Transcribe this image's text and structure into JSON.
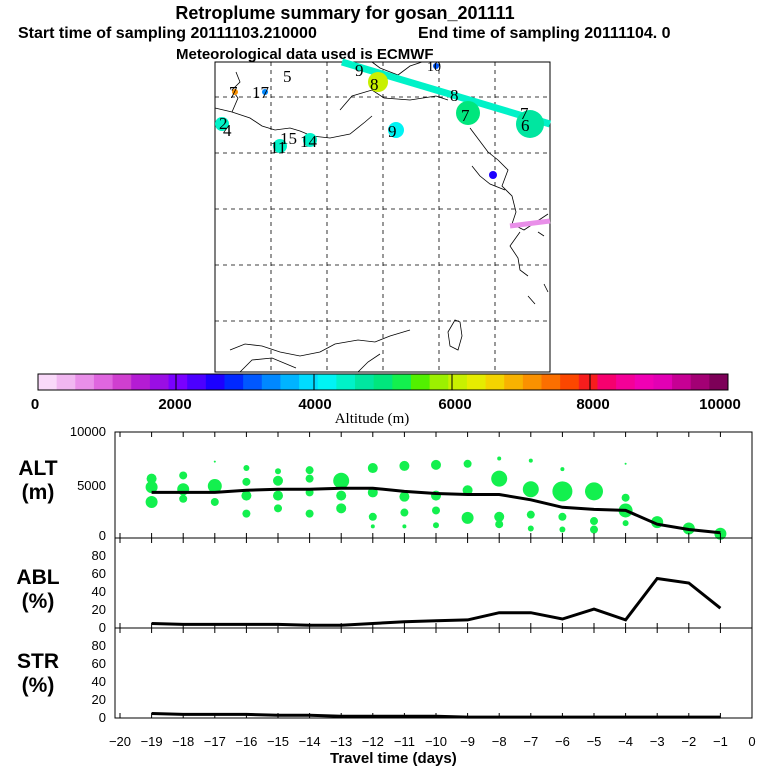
{
  "header": {
    "title": "Retroplume summary for gosan_201111",
    "start": "Start time of sampling 20111103.210000",
    "end": "End time of sampling 20111104.     0",
    "met": "Meteorological data used is ECMWF"
  },
  "map": {
    "labels": [
      "2",
      "4",
      "5",
      "6",
      "7",
      "7",
      "7",
      "8",
      "8",
      "9",
      "9",
      "10",
      "11",
      "14",
      "15",
      "17"
    ]
  },
  "colorbar": {
    "label": "Altitude (m)",
    "ticks": [
      "0",
      "2000",
      "4000",
      "6000",
      "8000",
      "10000"
    ],
    "colors": [
      "#f9d9f9",
      "#f1b7f1",
      "#e98fe9",
      "#df66df",
      "#cf3fcf",
      "#b41cd3",
      "#9a0ee4",
      "#7a00ff",
      "#4c00ff",
      "#1c00ff",
      "#0028ff",
      "#0058ff",
      "#0088ff",
      "#00b4ff",
      "#00dcff",
      "#00f4f4",
      "#00f2c8",
      "#00e6a0",
      "#00e67d",
      "#13f04e",
      "#52f000",
      "#9cf000",
      "#c8f000",
      "#e6ec00",
      "#f4d400",
      "#f8b200",
      "#fa9100",
      "#fb6f00",
      "#fc4700",
      "#f71d1d",
      "#f6006e",
      "#f40098",
      "#f000b4",
      "#e200b4",
      "#c60094",
      "#a30074",
      "#7d0058"
    ]
  },
  "panels": {
    "alt": {
      "label": "ALT\n(m)",
      "ticks": [
        "0",
        "5000",
        "10000"
      ]
    },
    "abl": {
      "label": "ABL\n(%)",
      "ticks": [
        "0",
        "20",
        "40",
        "60",
        "80"
      ]
    },
    "str": {
      "label": "STR\n(%)",
      "ticks": [
        "0",
        "20",
        "40",
        "60",
        "80"
      ]
    }
  },
  "xaxis": {
    "label": "Travel time (days)",
    "ticks": [
      "−20",
      "−19",
      "−18",
      "−17",
      "−16",
      "−15",
      "−14",
      "−13",
      "−12",
      "−11",
      "−10",
      "−9",
      "−8",
      "−7",
      "−6",
      "−5",
      "−4",
      "−3",
      "−2",
      "−1",
      "0"
    ]
  },
  "chart_data": [
    {
      "type": "line",
      "title": "ALT (m)",
      "xlabel": "Travel time (days)",
      "ylabel": "ALT (m)",
      "x": [
        -19,
        -18,
        -17,
        -16,
        -15,
        -14,
        -13,
        -12,
        -11,
        -10,
        -9,
        -8,
        -7,
        -6,
        -5,
        -4,
        -3,
        -2,
        -1
      ],
      "values": [
        4300,
        4300,
        4300,
        4500,
        4600,
        4600,
        4700,
        4700,
        4400,
        4200,
        4100,
        4100,
        3600,
        2900,
        2700,
        2600,
        1300,
        800,
        500
      ],
      "ylim": [
        0,
        10000
      ],
      "bubble_color": "#13f04e",
      "bubbles": [
        {
          "x": -19,
          "y": 5600,
          "s": 5
        },
        {
          "x": -19,
          "y": 4800,
          "s": 6
        },
        {
          "x": -19,
          "y": 3400,
          "s": 6
        },
        {
          "x": -18,
          "y": 5900,
          "s": 4
        },
        {
          "x": -18,
          "y": 4600,
          "s": 6
        },
        {
          "x": -18,
          "y": 3700,
          "s": 4
        },
        {
          "x": -17,
          "y": 7200,
          "s": 1
        },
        {
          "x": -17,
          "y": 4900,
          "s": 7
        },
        {
          "x": -17,
          "y": 3400,
          "s": 4
        },
        {
          "x": -16,
          "y": 6600,
          "s": 3
        },
        {
          "x": -16,
          "y": 5300,
          "s": 4
        },
        {
          "x": -16,
          "y": 4000,
          "s": 5
        },
        {
          "x": -16,
          "y": 2300,
          "s": 4
        },
        {
          "x": -15,
          "y": 6300,
          "s": 3
        },
        {
          "x": -15,
          "y": 5400,
          "s": 5
        },
        {
          "x": -15,
          "y": 4000,
          "s": 5
        },
        {
          "x": -15,
          "y": 2800,
          "s": 4
        },
        {
          "x": -14,
          "y": 6400,
          "s": 4
        },
        {
          "x": -14,
          "y": 5600,
          "s": 4
        },
        {
          "x": -14,
          "y": 4300,
          "s": 4
        },
        {
          "x": -14,
          "y": 2300,
          "s": 4
        },
        {
          "x": -13,
          "y": 5400,
          "s": 8
        },
        {
          "x": -13,
          "y": 4000,
          "s": 5
        },
        {
          "x": -13,
          "y": 2800,
          "s": 5
        },
        {
          "x": -12,
          "y": 6600,
          "s": 5
        },
        {
          "x": -12,
          "y": 4300,
          "s": 5
        },
        {
          "x": -12,
          "y": 2000,
          "s": 4
        },
        {
          "x": -12,
          "y": 1100,
          "s": 2
        },
        {
          "x": -11,
          "y": 6800,
          "s": 5
        },
        {
          "x": -11,
          "y": 3900,
          "s": 5
        },
        {
          "x": -11,
          "y": 2400,
          "s": 4
        },
        {
          "x": -11,
          "y": 1100,
          "s": 2
        },
        {
          "x": -10,
          "y": 6900,
          "s": 5
        },
        {
          "x": -10,
          "y": 4000,
          "s": 5
        },
        {
          "x": -10,
          "y": 2600,
          "s": 4
        },
        {
          "x": -10,
          "y": 1200,
          "s": 3
        },
        {
          "x": -9,
          "y": 7000,
          "s": 4
        },
        {
          "x": -9,
          "y": 4500,
          "s": 5
        },
        {
          "x": -9,
          "y": 1900,
          "s": 6
        },
        {
          "x": -8,
          "y": 7500,
          "s": 2
        },
        {
          "x": -8,
          "y": 5600,
          "s": 8
        },
        {
          "x": -8,
          "y": 2000,
          "s": 5
        },
        {
          "x": -8,
          "y": 1300,
          "s": 4
        },
        {
          "x": -7,
          "y": 7300,
          "s": 2
        },
        {
          "x": -7,
          "y": 4600,
          "s": 8
        },
        {
          "x": -7,
          "y": 2200,
          "s": 4
        },
        {
          "x": -7,
          "y": 900,
          "s": 3
        },
        {
          "x": -6,
          "y": 6500,
          "s": 2
        },
        {
          "x": -6,
          "y": 4400,
          "s": 10
        },
        {
          "x": -6,
          "y": 2000,
          "s": 4
        },
        {
          "x": -6,
          "y": 800,
          "s": 3
        },
        {
          "x": -5,
          "y": 4400,
          "s": 9
        },
        {
          "x": -5,
          "y": 1600,
          "s": 4
        },
        {
          "x": -5,
          "y": 800,
          "s": 4
        },
        {
          "x": -4,
          "y": 7000,
          "s": 1
        },
        {
          "x": -4,
          "y": 3800,
          "s": 4
        },
        {
          "x": -4,
          "y": 2600,
          "s": 7
        },
        {
          "x": -4,
          "y": 1400,
          "s": 3
        },
        {
          "x": -3,
          "y": 1500,
          "s": 6
        },
        {
          "x": -2,
          "y": 900,
          "s": 6
        },
        {
          "x": -1,
          "y": 400,
          "s": 6
        }
      ]
    },
    {
      "type": "line",
      "title": "ABL (%)",
      "ylabel": "ABL (%)",
      "x": [
        -19,
        -18,
        -17,
        -16,
        -15,
        -14,
        -13,
        -12,
        -11,
        -10,
        -9,
        -8,
        -7,
        -6,
        -5,
        -4,
        -3,
        -2,
        -1
      ],
      "values": [
        5,
        4,
        4,
        4,
        4,
        3,
        3,
        5,
        7,
        8,
        9,
        17,
        17,
        10,
        21,
        9,
        55,
        50,
        22
      ],
      "ylim": [
        0,
        100
      ]
    },
    {
      "type": "line",
      "title": "STR (%)",
      "ylabel": "STR (%)",
      "x": [
        -19,
        -18,
        -17,
        -16,
        -15,
        -14,
        -13,
        -12,
        -11,
        -10,
        -9,
        -8,
        -7,
        -6,
        -5,
        -4,
        -3,
        -2,
        -1
      ],
      "values": [
        5,
        4,
        4,
        4,
        3,
        3,
        2,
        2,
        2,
        2,
        1,
        1,
        1,
        1,
        1,
        1,
        1,
        1,
        1
      ],
      "ylim": [
        0,
        100
      ]
    }
  ]
}
